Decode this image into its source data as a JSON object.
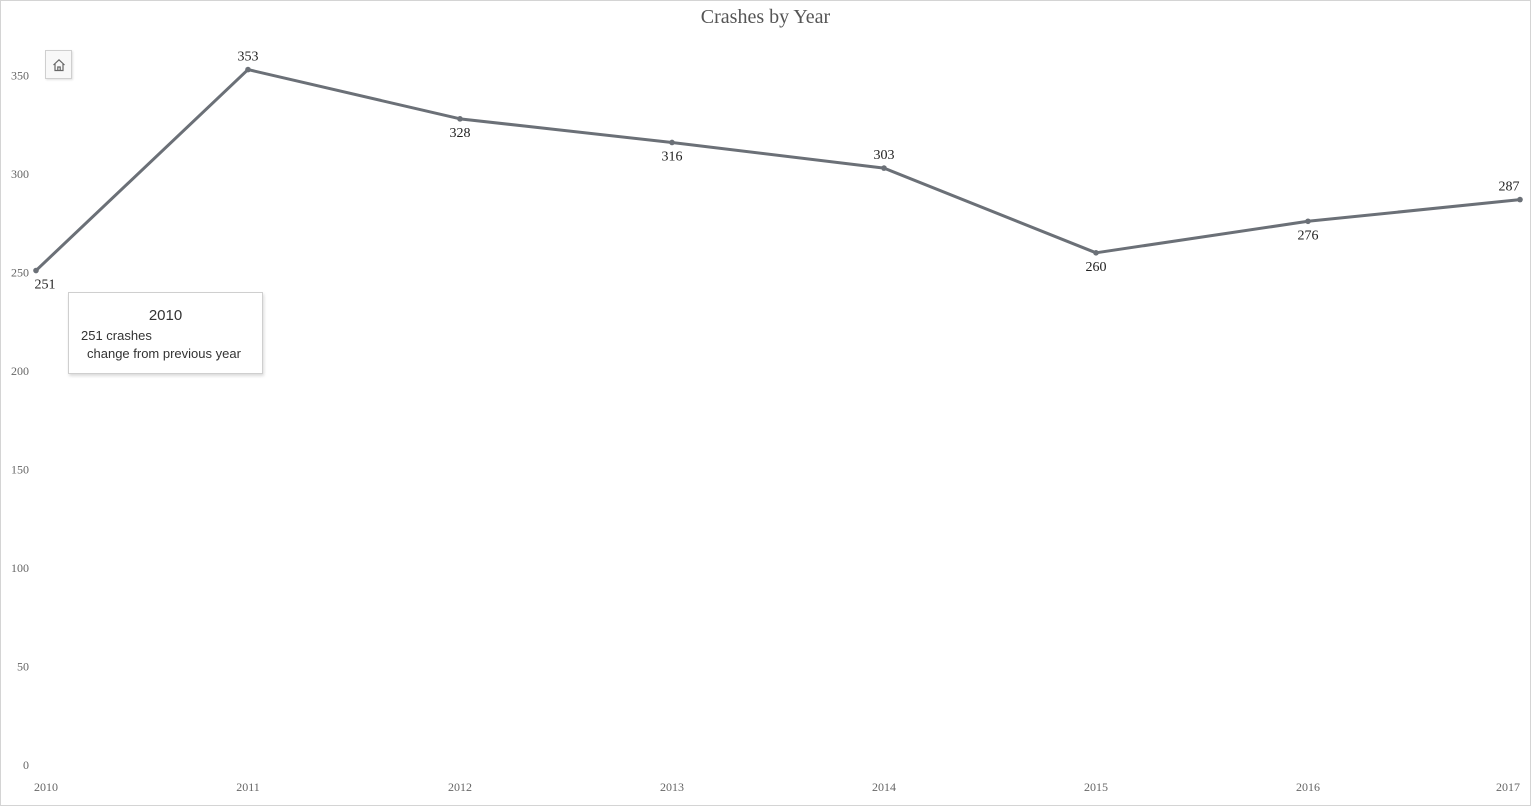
{
  "chart_data": {
    "type": "line",
    "title": "Crashes by Year",
    "xlabel": "",
    "ylabel": "",
    "categories": [
      "2010",
      "2011",
      "2012",
      "2013",
      "2014",
      "2015",
      "2016",
      "2017"
    ],
    "values": [
      251,
      353,
      328,
      316,
      303,
      260,
      276,
      287
    ],
    "data_labels": [
      "251",
      "353",
      "328",
      "316",
      "303",
      "260",
      "276",
      "287"
    ],
    "y_ticks": [
      "0",
      "50",
      "100",
      "150",
      "200",
      "250",
      "300",
      "350"
    ],
    "ylim": [
      0,
      380
    ],
    "grid": false,
    "legend": "none",
    "line_color": "#6b7077"
  },
  "tooltip": {
    "title": "2010",
    "line1": "251 crashes",
    "line2": "change from previous year"
  },
  "toolbar": {
    "home_icon": "home-icon"
  }
}
